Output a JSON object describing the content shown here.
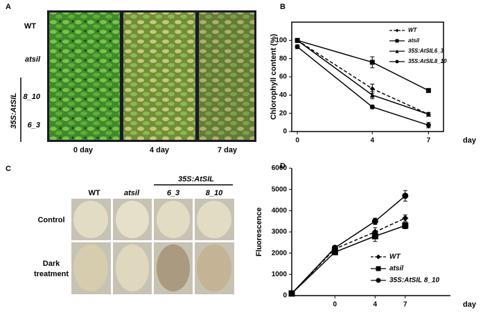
{
  "panel_a": {
    "label": "A",
    "rows": [
      "WT",
      "atsil",
      "8_10",
      "6_3"
    ],
    "group": "35S:AtSIL",
    "columns": [
      "0 day",
      "4 day",
      "7 day"
    ]
  },
  "panel_c": {
    "label": "C",
    "columns": [
      "WT",
      "atsil",
      "6_3",
      "8_10"
    ],
    "group": "35S:AtSIL",
    "rows": [
      "Control",
      "Dark",
      "treatment"
    ]
  },
  "chart_data": [
    {
      "type": "line",
      "label": "B",
      "ylabel": "Chlorophyll content (%)",
      "xlabel": "day",
      "x": [
        0,
        4,
        7
      ],
      "xlim": [
        -0.3,
        7.8
      ],
      "xticks": [
        0,
        4,
        7
      ],
      "ylim": [
        0,
        120
      ],
      "yticks": [
        0,
        20,
        40,
        60,
        80,
        100
      ],
      "frame": "box",
      "legend": "top-right",
      "series": [
        {
          "name": "WT",
          "color": "#000000",
          "marker": "diamond",
          "dashed": true,
          "values": [
            100,
            47,
            19
          ],
          "errors": [
            2,
            5,
            2
          ]
        },
        {
          "name": "atsil",
          "color": "#000000",
          "marker": "square",
          "dashed": false,
          "values": [
            100,
            76,
            45
          ],
          "errors": [
            2,
            6,
            2
          ]
        },
        {
          "name": "35S:AtSIL6_3",
          "color": "#000000",
          "marker": "triangle",
          "dashed": false,
          "values": [
            100,
            40,
            19
          ],
          "errors": [
            2,
            4,
            2
          ]
        },
        {
          "name": "35S:AtSIL8_10",
          "color": "#000000",
          "marker": "circle",
          "dashed": false,
          "values": [
            93,
            27,
            7
          ],
          "errors": [
            2,
            2,
            3
          ]
        }
      ]
    },
    {
      "type": "line",
      "label": "D",
      "ylabel": "Fluorescence",
      "xlabel": "day",
      "x": [
        -4.3,
        0,
        4,
        7
      ],
      "xlim": [
        -4.3,
        11.5
      ],
      "xticks": [
        0,
        4,
        7
      ],
      "ylim": [
        0,
        6000
      ],
      "yticks": [
        0,
        1000,
        2000,
        3000,
        4000,
        5000,
        6000
      ],
      "frame": "axes",
      "legend": "bottom-right",
      "series": [
        {
          "name": "WT",
          "color": "#000000",
          "marker": "diamond",
          "dashed": true,
          "values": [
            100,
            2200,
            3000,
            3650
          ],
          "errors": [
            0,
            100,
            200,
            150
          ]
        },
        {
          "name": "atsil",
          "color": "#000000",
          "marker": "square",
          "dashed": false,
          "values": [
            100,
            2050,
            2800,
            3300
          ],
          "errors": [
            0,
            100,
            250,
            150
          ]
        },
        {
          "name": "35S:AtSIL 8_10",
          "color": "#000000",
          "marker": "circle",
          "dashed": false,
          "values": [
            100,
            2250,
            3500,
            4700
          ],
          "errors": [
            0,
            100,
            150,
            250
          ]
        }
      ]
    }
  ]
}
